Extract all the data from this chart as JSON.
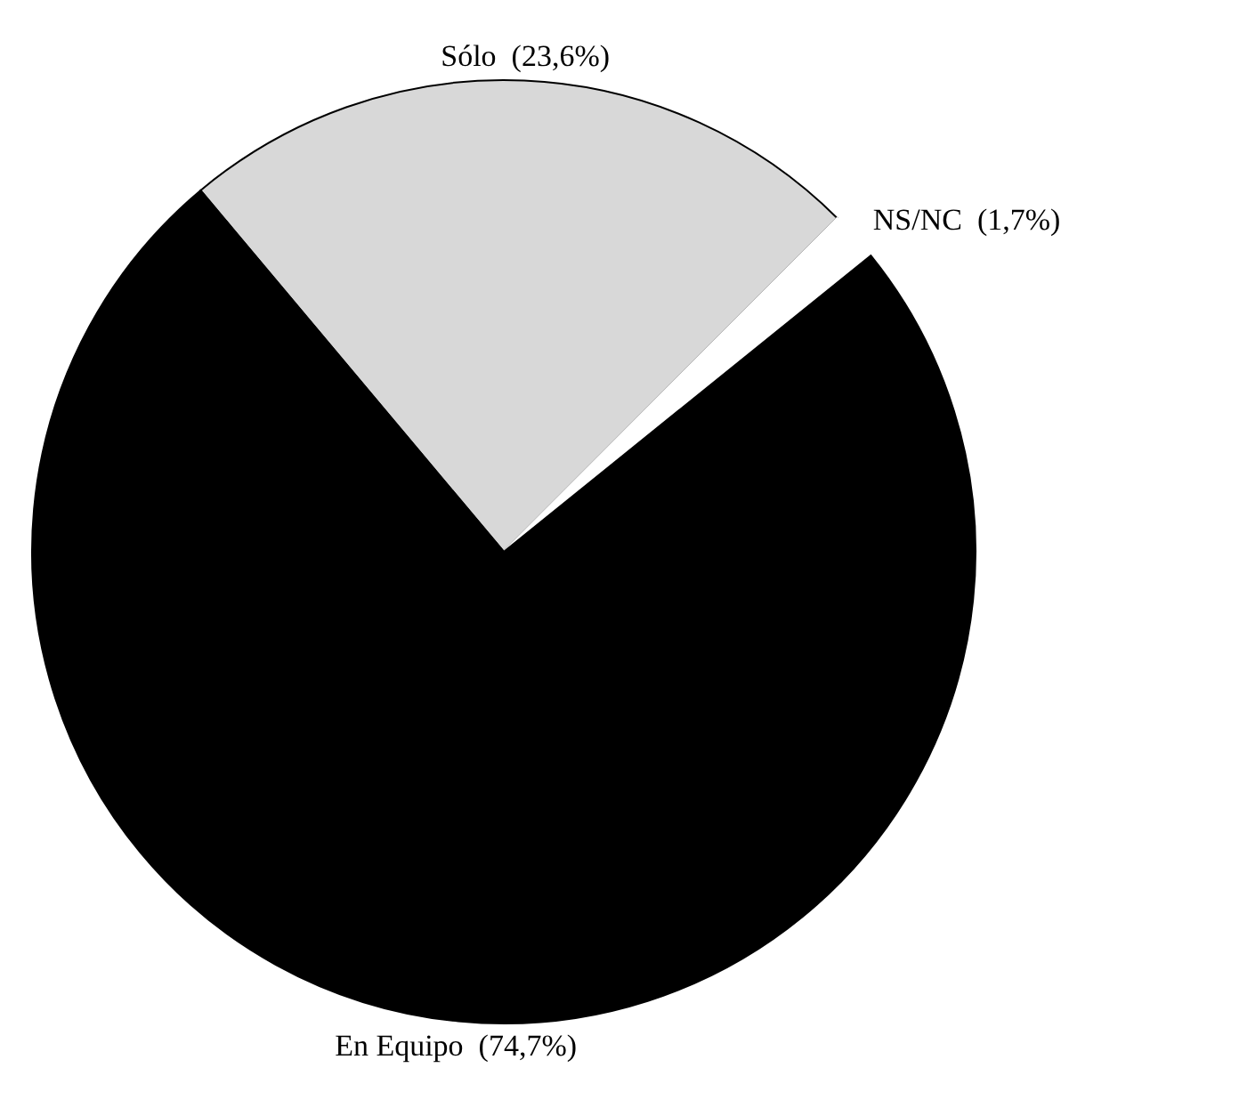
{
  "chart_data": {
    "type": "pie",
    "categories": [
      "Sólo",
      "NS/NC",
      "En Equipo"
    ],
    "values": [
      23.6,
      1.7,
      74.7
    ],
    "value_labels": [
      "(23,6%)",
      "(1,7%)",
      "(74,7%)"
    ],
    "colors": [
      "#d8d8d8",
      "#ffffff",
      "#000000"
    ]
  }
}
